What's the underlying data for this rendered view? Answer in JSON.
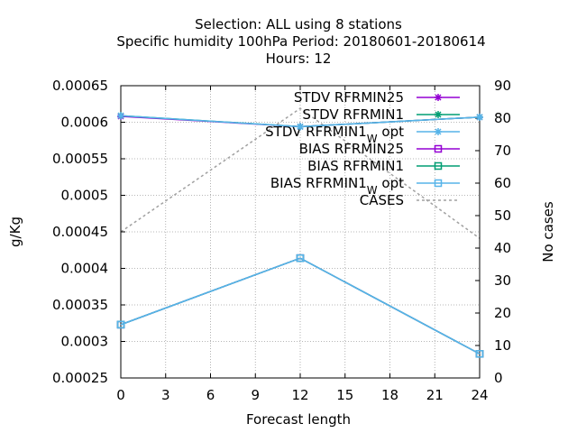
{
  "chart_data": {
    "type": "line",
    "title_lines": [
      "Selection: ALL using     8 stations",
      "Specific humidity 100hPa   Period: 20180601-20180614",
      "Hours:  12"
    ],
    "xlabel": "Forecast length",
    "ylabel": "g/Kg",
    "y2label": "No cases",
    "x_ticks": [
      0,
      3,
      6,
      9,
      12,
      15,
      18,
      21,
      24
    ],
    "y_ticks": [
      "0.00025",
      "0.0003",
      "0.00035",
      "0.0004",
      "0.00045",
      "0.0005",
      "0.00055",
      "0.0006",
      "0.00065"
    ],
    "y2_ticks": [
      "0",
      "10",
      "20",
      "30",
      "40",
      "50",
      "60",
      "70",
      "80",
      "90"
    ],
    "xlim": [
      0,
      24
    ],
    "ylim": [
      0.00025,
      0.00065
    ],
    "y2lim": [
      0,
      90
    ],
    "grid": true,
    "legend_position": "top-right",
    "x": [
      0,
      12,
      24
    ],
    "series": [
      {
        "name": "STDV RFRMIN25",
        "name_main": "STDV RFRMIN25",
        "name_sub": "",
        "name_tail": "",
        "axis": "y1",
        "color": "#9400d3",
        "marker": "star",
        "dash": "",
        "values": [
          0.000608,
          0.000594,
          0.000607
        ]
      },
      {
        "name": "STDV RFRMIN1",
        "name_main": "STDV RFRMIN1",
        "name_sub": "",
        "name_tail": "",
        "axis": "y1",
        "color": "#009e73",
        "marker": "star",
        "dash": "",
        "values": [
          0.000609,
          0.000594,
          0.000607
        ]
      },
      {
        "name": "STDV RFRMIN1_W opt",
        "name_main": "STDV RFRMIN1",
        "name_sub": "W",
        "name_tail": " opt",
        "axis": "y1",
        "color": "#56b4e9",
        "marker": "star",
        "dash": "",
        "values": [
          0.000609,
          0.000594,
          0.000607
        ]
      },
      {
        "name": "BIAS RFRMIN25",
        "name_main": "BIAS RFRMIN25",
        "name_sub": "",
        "name_tail": "",
        "axis": "y1",
        "color": "#9400d3",
        "marker": "square",
        "dash": "",
        "values": [
          0.000323,
          0.000414,
          0.000283
        ]
      },
      {
        "name": "BIAS RFRMIN1",
        "name_main": "BIAS RFRMIN1",
        "name_sub": "",
        "name_tail": "",
        "axis": "y1",
        "color": "#009e73",
        "marker": "square",
        "dash": "",
        "values": [
          0.000323,
          0.000414,
          0.000283
        ]
      },
      {
        "name": "BIAS RFRMIN1_W opt",
        "name_main": "BIAS RFRMIN1",
        "name_sub": "W",
        "name_tail": " opt",
        "axis": "y1",
        "color": "#56b4e9",
        "marker": "square",
        "dash": "",
        "values": [
          0.000323,
          0.000414,
          0.000283
        ]
      },
      {
        "name": "CASES",
        "name_main": "CASES",
        "name_sub": "",
        "name_tail": "",
        "axis": "y2",
        "color": "#a0a0a0",
        "marker": "none",
        "dash": "3,3",
        "values": [
          45,
          83,
          43
        ]
      }
    ]
  }
}
